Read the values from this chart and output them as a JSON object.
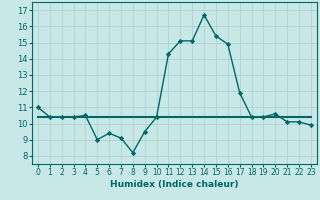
{
  "title": "",
  "xlabel": "Humidex (Indice chaleur)",
  "x": [
    0,
    1,
    2,
    3,
    4,
    5,
    6,
    7,
    8,
    9,
    10,
    11,
    12,
    13,
    14,
    15,
    16,
    17,
    18,
    19,
    20,
    21,
    22,
    23
  ],
  "y_curve": [
    11,
    10.4,
    10.4,
    10.4,
    10.5,
    9.0,
    9.4,
    9.1,
    8.2,
    9.5,
    10.4,
    14.3,
    15.1,
    15.1,
    16.7,
    15.4,
    14.9,
    11.9,
    10.4,
    10.4,
    10.6,
    10.1,
    10.1,
    9.9
  ],
  "y_flat": [
    10.4,
    10.4,
    10.4,
    10.4,
    10.4,
    10.4,
    10.4,
    10.4,
    10.4,
    10.4,
    10.4,
    10.4,
    10.4,
    10.4,
    10.4,
    10.4,
    10.4,
    10.4,
    10.4,
    10.4,
    10.4,
    10.4,
    10.4,
    10.4
  ],
  "line_color": "#006666",
  "bg_color": "#c8e8e8",
  "grid_color": "#b0cccc",
  "ylim": [
    7.5,
    17.5
  ],
  "yticks": [
    8,
    9,
    10,
    11,
    12,
    13,
    14,
    15,
    16,
    17
  ],
  "xtick_labels": [
    "0",
    "1",
    "2",
    "3",
    "4",
    "5",
    "6",
    "7",
    "8",
    "9",
    "10",
    "11",
    "12",
    "13",
    "14",
    "15",
    "16",
    "17",
    "18",
    "19",
    "20",
    "21",
    "22",
    "23"
  ],
  "marker": "D",
  "markersize": 2.2,
  "linewidth": 1.0,
  "tick_fontsize": 5.5,
  "xlabel_fontsize": 6.5,
  "ytick_fontsize": 6.0
}
